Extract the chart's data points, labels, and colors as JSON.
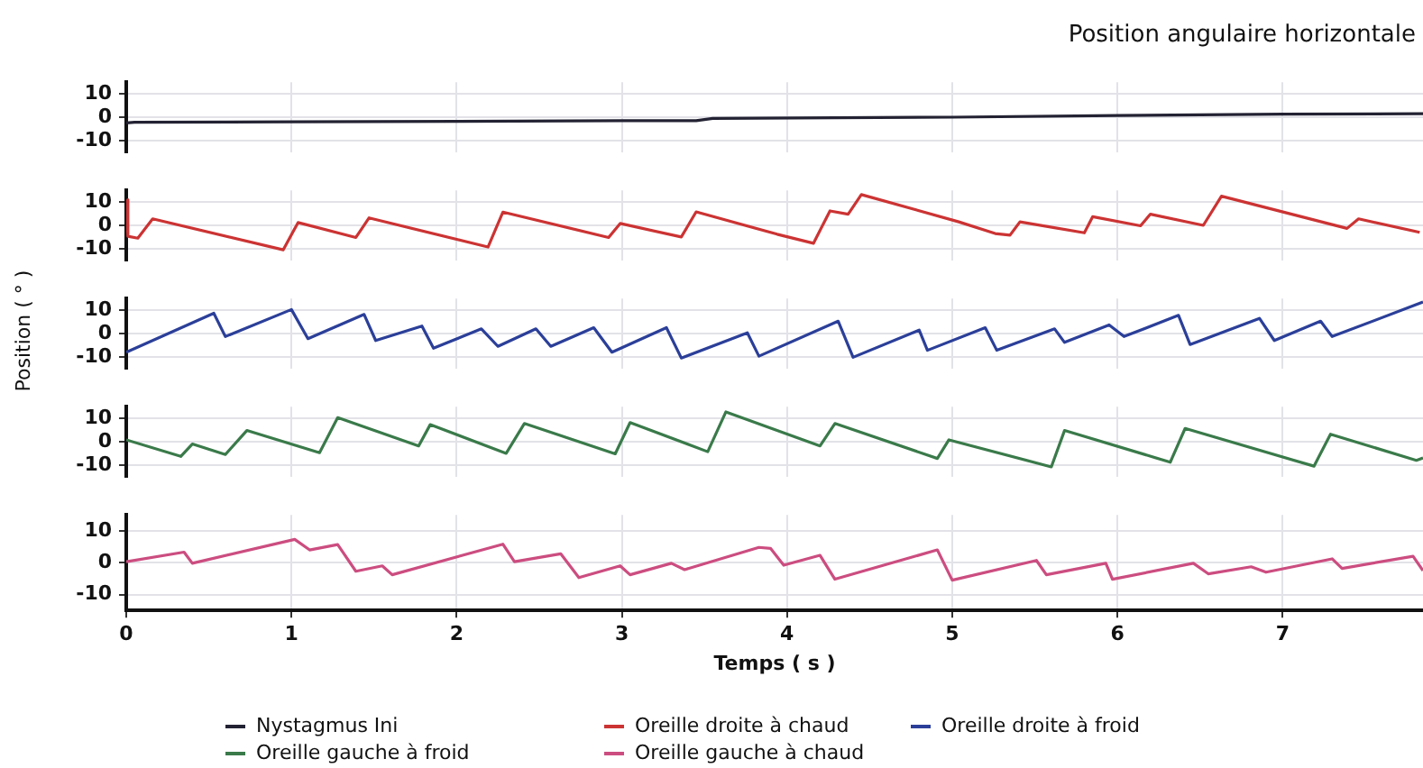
{
  "chart_data": [
    {
      "type": "line",
      "title": "Position angulaire horizontale",
      "x": [
        0,
        0.05,
        1,
        2,
        3,
        3.45,
        3.55,
        5,
        6,
        7,
        7.85
      ],
      "series": [
        {
          "name": "Nystagmus Ini",
          "color": "#222233",
          "values": [
            -2.5,
            -2.2,
            -2,
            -1.8,
            -1.5,
            -1.5,
            -0.5,
            0,
            0.7,
            1.3,
            1.5
          ]
        }
      ],
      "xlim": [
        0,
        7.85
      ],
      "xticks": [
        0,
        1,
        2,
        3,
        4,
        5,
        6,
        7
      ],
      "ylim": [
        -15,
        15
      ],
      "yticks": [
        -10,
        0,
        10
      ],
      "grid": true,
      "legend": "bottom",
      "tick_labels": "y",
      "marker": "none"
    },
    {
      "type": "line",
      "x": [
        0,
        0.01,
        0.07,
        0.16,
        0.95,
        1.04,
        1.39,
        1.47,
        2.19,
        2.28,
        2.92,
        2.99,
        3.36,
        3.45,
        3.94,
        4.16,
        4.26,
        4.37,
        4.45,
        5.04,
        5.26,
        5.35,
        5.41,
        5.8,
        5.85,
        6.14,
        6.2,
        6.52,
        6.63,
        7.39,
        7.46,
        7.83
      ],
      "series": [
        {
          "name": "Oreille droite à chaud",
          "color": "#cc3333",
          "values": [
            11,
            -4.7,
            -5.5,
            2.8,
            -10.5,
            1.2,
            -5.2,
            3.2,
            -9.3,
            5.7,
            -5.2,
            0.8,
            -5,
            5.8,
            -3.8,
            -7.7,
            6.2,
            4.8,
            13.2,
            1.5,
            -3.5,
            -4.2,
            1.5,
            -3.2,
            3.7,
            -0.2,
            4.8,
            0,
            12.5,
            -1.3,
            2.8,
            -3
          ]
        }
      ],
      "xlim": [
        0,
        7.85
      ],
      "xticks": [
        0,
        1,
        2,
        3,
        4,
        5,
        6,
        7
      ],
      "ylim": [
        -15,
        15
      ],
      "yticks": [
        -10,
        0,
        10
      ],
      "grid": true,
      "legend": "bottom",
      "tick_labels": "y",
      "marker": "none"
    },
    {
      "type": "line",
      "ylabel": "Position ( ° )",
      "x": [
        0,
        0.53,
        0.6,
        1.0,
        1.1,
        1.44,
        1.51,
        1.79,
        1.86,
        2.15,
        2.25,
        2.48,
        2.57,
        2.83,
        2.94,
        3.27,
        3.36,
        3.76,
        3.83,
        4.31,
        4.4,
        4.8,
        4.85,
        5.2,
        5.27,
        5.62,
        5.68,
        5.95,
        6.04,
        6.37,
        6.44,
        6.86,
        6.95,
        7.23,
        7.3,
        7.85
      ],
      "series": [
        {
          "name": "Oreille droite à froid",
          "color": "#2b3f99",
          "values": [
            -8,
            8.7,
            -1.3,
            10.3,
            -2.2,
            8.2,
            -3,
            3.2,
            -6.3,
            2,
            -5.5,
            2,
            -5.5,
            2.5,
            -8,
            2.5,
            -10.5,
            0.3,
            -9.7,
            5.3,
            -10.2,
            1.5,
            -7.2,
            2.5,
            -7.2,
            2,
            -3.8,
            3.7,
            -1.3,
            7.8,
            -4.7,
            6.5,
            -3,
            5.3,
            -1.3,
            13.5
          ]
        }
      ],
      "xlim": [
        0,
        7.85
      ],
      "xticks": [
        0,
        1,
        2,
        3,
        4,
        5,
        6,
        7
      ],
      "ylim": [
        -15,
        15
      ],
      "yticks": [
        -10,
        0,
        10
      ],
      "grid": true,
      "legend": "bottom",
      "tick_labels": "y",
      "marker": "none"
    },
    {
      "type": "line",
      "x": [
        0,
        0.33,
        0.4,
        0.6,
        0.73,
        1.17,
        1.28,
        1.77,
        1.84,
        2.3,
        2.41,
        2.96,
        3.05,
        3.52,
        3.63,
        4.2,
        4.29,
        4.91,
        4.98,
        5.6,
        5.68,
        6.32,
        6.41,
        7.19,
        7.29,
        7.81,
        7.85
      ],
      "series": [
        {
          "name": "Oreille gauche à froid",
          "color": "#3a7a4a",
          "values": [
            0.8,
            -6.3,
            -1,
            -5.5,
            4.8,
            -4.7,
            10.3,
            -1.8,
            7.3,
            -5,
            7.8,
            -5.2,
            8.2,
            -4.3,
            12.8,
            -1.8,
            7.8,
            -7.2,
            0.8,
            -10.8,
            4.8,
            -8.8,
            5.7,
            -10.5,
            3.2,
            -8,
            -7
          ]
        }
      ],
      "xlim": [
        0,
        7.85
      ],
      "xticks": [
        0,
        1,
        2,
        3,
        4,
        5,
        6,
        7
      ],
      "ylim": [
        -15,
        15
      ],
      "yticks": [
        -10,
        0,
        10
      ],
      "grid": true,
      "legend": "bottom",
      "tick_labels": "y",
      "marker": "none"
    },
    {
      "type": "line",
      "xlabel": "Temps ( s )",
      "x": [
        0,
        0.35,
        0.4,
        1.02,
        1.11,
        1.28,
        1.39,
        1.55,
        1.61,
        2.28,
        2.35,
        2.63,
        2.74,
        2.99,
        3.05,
        3.3,
        3.38,
        3.83,
        3.9,
        3.98,
        4.2,
        4.29,
        4.91,
        5.0,
        5.51,
        5.57,
        5.93,
        5.97,
        6.46,
        6.55,
        6.81,
        6.9,
        7.3,
        7.36,
        7.79,
        7.85
      ],
      "series": [
        {
          "name": "Oreille gauche à chaud",
          "color": "#cc4d80",
          "values": [
            0.3,
            3.3,
            -0.2,
            7.3,
            4,
            5.7,
            -2.7,
            -1,
            -3.8,
            5.8,
            0.3,
            2.8,
            -4.7,
            -1,
            -3.8,
            -0.2,
            -2.2,
            4.8,
            4.5,
            -0.8,
            2.3,
            -5.2,
            4,
            -5.5,
            0.7,
            -3.8,
            -0.2,
            -5.2,
            -0.2,
            -3.5,
            -1.3,
            -3,
            1.2,
            -1.8,
            2,
            -2.5
          ]
        }
      ],
      "xlim": [
        0,
        7.85
      ],
      "xticks": [
        0,
        1,
        2,
        3,
        4,
        5,
        6,
        7
      ],
      "ylim": [
        -15,
        15
      ],
      "yticks": [
        -10,
        0,
        10
      ],
      "grid": true,
      "legend": "bottom",
      "marker": "none"
    }
  ]
}
